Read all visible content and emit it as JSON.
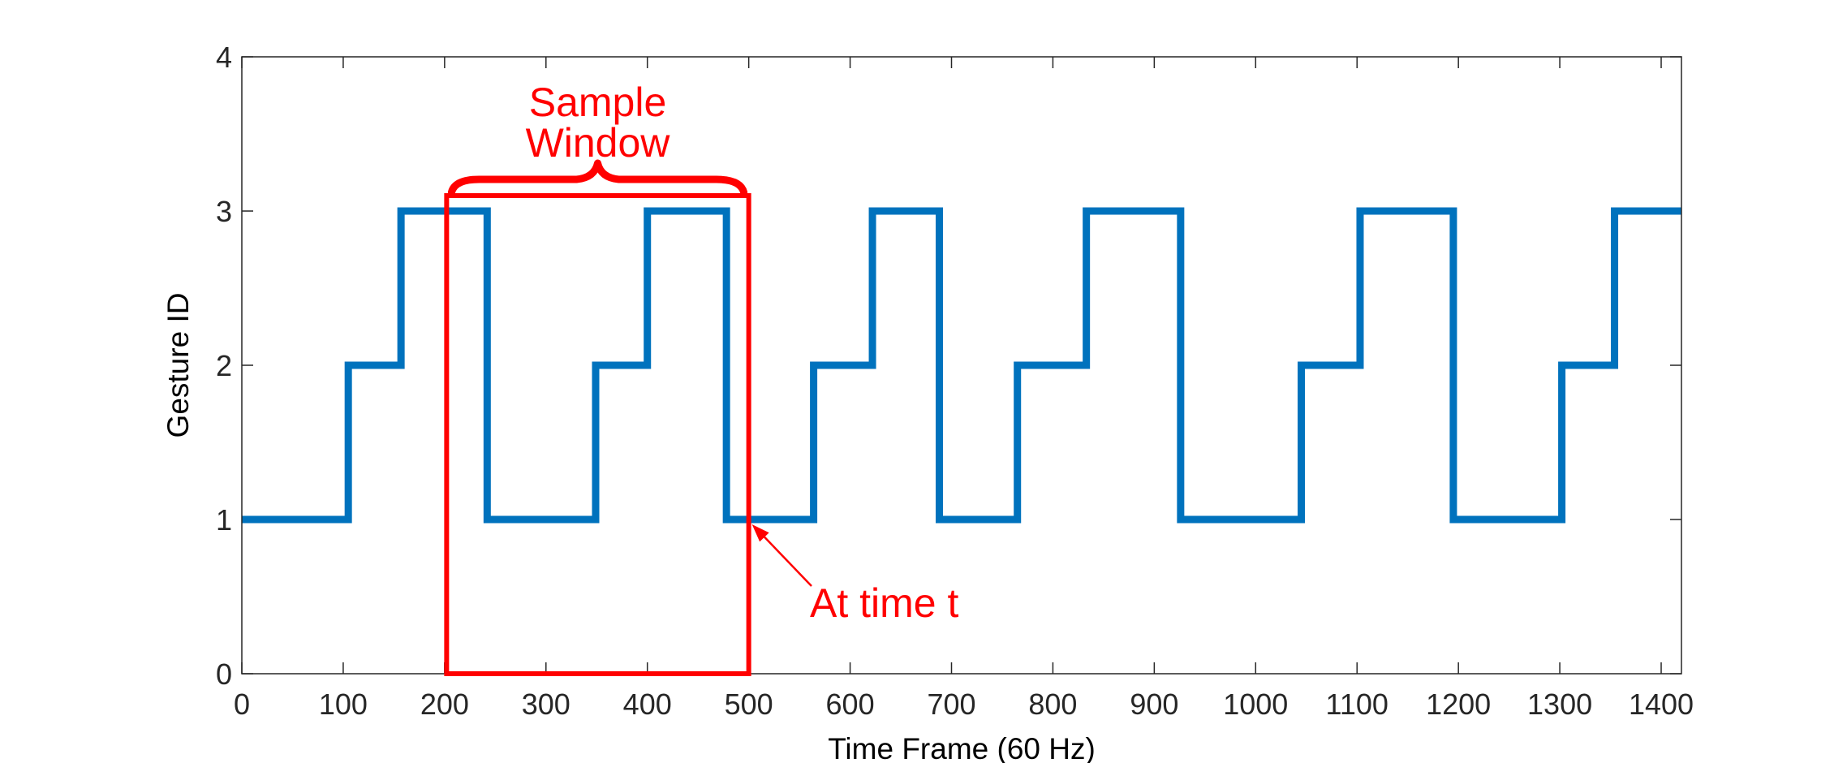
{
  "chart_data": {
    "type": "line",
    "xlabel": "Time Frame (60 Hz)",
    "ylabel": "Gesture ID",
    "xlim": [
      0,
      1420
    ],
    "ylim": [
      0,
      4
    ],
    "xticks": [
      0,
      100,
      200,
      300,
      400,
      500,
      600,
      700,
      800,
      900,
      1000,
      1100,
      1200,
      1300,
      1400
    ],
    "yticks": [
      0,
      1,
      2,
      3,
      4
    ],
    "grid": false,
    "line_color": "#0072BD",
    "annotation_color": "#ff0000",
    "series": [
      {
        "step": true,
        "x": [
          0,
          105,
          157,
          242,
          349,
          400,
          478,
          564,
          622,
          688,
          765,
          833,
          926,
          1045,
          1103,
          1195,
          1302,
          1354,
          1420
        ],
        "y": [
          1,
          2,
          3,
          1,
          2,
          3,
          1,
          2,
          3,
          1,
          2,
          3,
          1,
          2,
          3,
          1,
          2,
          3,
          3
        ]
      }
    ],
    "annotations": {
      "window_label_line1": "Sample",
      "window_label_line2": "Window",
      "window_x": [
        202,
        500
      ],
      "window_y": [
        0,
        3.1
      ],
      "time_label": "At time t",
      "time_point": [
        500,
        1
      ]
    }
  }
}
